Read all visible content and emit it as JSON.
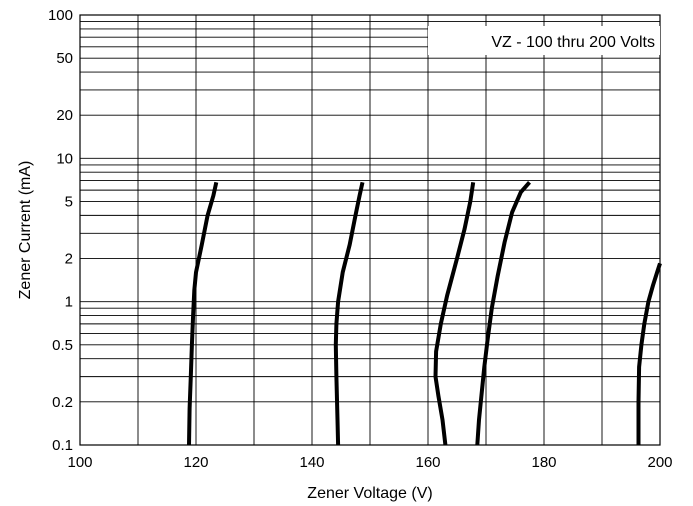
{
  "chart_data": {
    "type": "line",
    "title": "",
    "annotation": "VZ - 100 thru 200 Volts",
    "xlabel": "Zener Voltage (V)",
    "ylabel": "Zener Current (mA)",
    "xlim": [
      100,
      200
    ],
    "ylim": [
      0.1,
      100
    ],
    "yscale": "log",
    "grid": true,
    "x_ticks": [
      100,
      120,
      140,
      160,
      180,
      200
    ],
    "x_tick_labels": [
      "100",
      "120",
      "140",
      "160",
      "180",
      "200"
    ],
    "x_grid": [
      100,
      110,
      120,
      130,
      140,
      150,
      160,
      170,
      180,
      190,
      200
    ],
    "y_ticks": [
      0.1,
      0.2,
      0.5,
      1,
      2,
      5,
      10,
      20,
      50,
      100
    ],
    "y_tick_labels": [
      "0.1",
      "0.2",
      "0.5",
      "1",
      "2",
      "5",
      "10",
      "20",
      "50",
      "100"
    ],
    "y_grid": [
      0.1,
      0.2,
      0.3,
      0.4,
      0.5,
      0.6,
      0.7,
      0.8,
      0.9,
      1,
      2,
      3,
      4,
      5,
      6,
      7,
      8,
      9,
      10,
      20,
      30,
      40,
      50,
      60,
      70,
      80,
      90,
      100
    ],
    "series": [
      {
        "x": [
          118.8,
          118.9,
          119.1,
          119.3,
          119.5,
          119.7,
          120.0,
          121.0,
          122.0,
          123.0,
          123.5
        ],
        "y": [
          0.1,
          0.18,
          0.3,
          0.5,
          0.8,
          1.2,
          1.6,
          2.5,
          4.0,
          5.5,
          6.8
        ]
      },
      {
        "x": [
          144.5,
          144.4,
          144.2,
          144.1,
          144.2,
          144.5,
          145.3,
          146.5,
          147.5,
          148.2,
          148.7
        ],
        "y": [
          0.1,
          0.15,
          0.3,
          0.5,
          0.7,
          1.0,
          1.6,
          2.5,
          4.0,
          5.5,
          6.8
        ]
      },
      {
        "x": [
          163.0,
          162.5,
          161.8,
          161.3,
          161.4,
          162.2,
          163.3,
          165.0,
          166.3,
          167.3,
          167.8
        ],
        "y": [
          0.1,
          0.15,
          0.22,
          0.3,
          0.45,
          0.7,
          1.1,
          2.0,
          3.2,
          5.0,
          6.8
        ]
      },
      {
        "x": [
          168.5,
          168.8,
          169.2,
          169.7,
          170.3,
          171.0,
          172.0,
          173.2,
          174.5,
          176.0,
          177.5
        ],
        "y": [
          0.1,
          0.15,
          0.22,
          0.35,
          0.55,
          0.9,
          1.5,
          2.6,
          4.2,
          5.8,
          6.8
        ]
      },
      {
        "x": [
          196.3,
          196.3,
          196.4,
          196.8,
          197.3,
          198.0,
          198.8,
          199.5,
          200.0
        ],
        "y": [
          0.1,
          0.2,
          0.35,
          0.5,
          0.7,
          1.0,
          1.3,
          1.6,
          1.85
        ]
      }
    ]
  }
}
